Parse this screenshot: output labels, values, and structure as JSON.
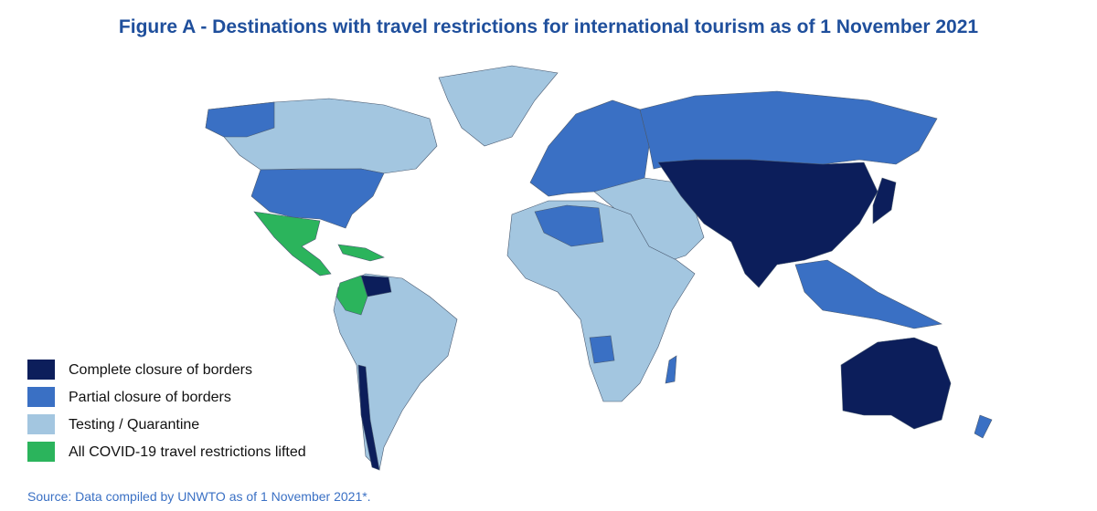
{
  "title": "Figure A - Destinations with travel restrictions for international tourism as of 1 November 2021",
  "legend": [
    {
      "label": "Complete closure of borders",
      "color": "#0c1e5b"
    },
    {
      "label": "Partial closure of borders",
      "color": "#3a70c4"
    },
    {
      "label": "Testing / Quarantine",
      "color": "#a3c6e0"
    },
    {
      "label": "All COVID-19 travel restrictions lifted",
      "color": "#2bb45c"
    }
  ],
  "source": "Source: Data compiled by UNWTO as of 1 November 2021*."
}
